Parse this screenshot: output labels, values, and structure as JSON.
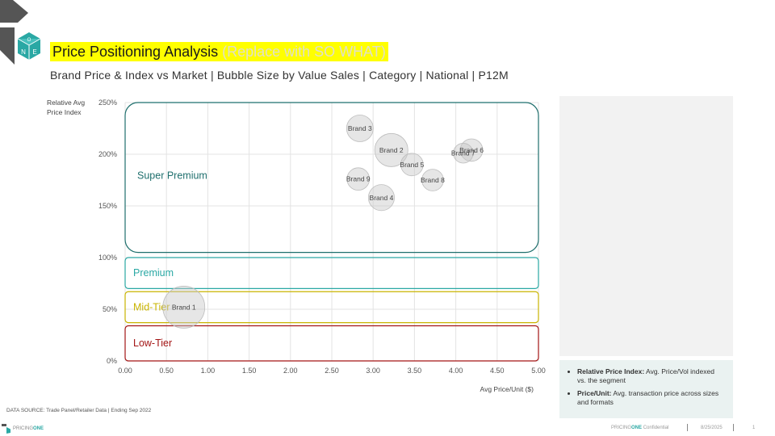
{
  "header": {
    "title": "Price Positioning Analysis",
    "title_note": "(Replace with SO WHAT)",
    "subtitle": "Brand Price & Index vs Market | Bubble Size by Value Sales | Category | National | P12M",
    "logo_letters": [
      "O",
      "N",
      "E"
    ]
  },
  "chart_data": {
    "type": "scatter",
    "title": "",
    "xlabel": "Avg Price/Unit ($)",
    "ylabel": "Relative Avg Price Index",
    "xlim": [
      0,
      5
    ],
    "ylim": [
      0,
      2.5
    ],
    "x_ticks": [
      "0.00",
      "0.50",
      "1.00",
      "1.50",
      "2.00",
      "2.50",
      "3.00",
      "3.50",
      "4.00",
      "4.50",
      "5.00"
    ],
    "y_ticks": [
      "0%",
      "50%",
      "100%",
      "150%",
      "200%",
      "250%"
    ],
    "grid": true,
    "points": [
      {
        "label": "Brand 1",
        "x": 0.71,
        "y": 0.52,
        "size": 1.0
      },
      {
        "label": "Brand 2",
        "x": 3.22,
        "y": 2.04,
        "size": 0.55
      },
      {
        "label": "Brand 3",
        "x": 2.84,
        "y": 2.25,
        "size": 0.3
      },
      {
        "label": "Brand 4",
        "x": 3.1,
        "y": 1.58,
        "size": 0.28
      },
      {
        "label": "Brand 5",
        "x": 3.47,
        "y": 1.9,
        "size": 0.18
      },
      {
        "label": "Brand 6",
        "x": 4.19,
        "y": 2.04,
        "size": 0.18
      },
      {
        "label": "Brand 7",
        "x": 4.09,
        "y": 2.01,
        "size": 0.12
      },
      {
        "label": "Brand 8",
        "x": 3.72,
        "y": 1.75,
        "size": 0.16
      },
      {
        "label": "Brand 9",
        "x": 2.82,
        "y": 1.76,
        "size": 0.18
      }
    ],
    "tiers": [
      {
        "label": "Super Premium",
        "y_from": 1.05,
        "y_to": 2.5,
        "color": "#1f6f6d"
      },
      {
        "label": "Premium",
        "y_from": 0.7,
        "y_to": 1.0,
        "color": "#2aa8a4"
      },
      {
        "label": "Mid-Tier",
        "y_from": 0.37,
        "y_to": 0.67,
        "color": "#c9b400"
      },
      {
        "label": "Low-Tier",
        "y_from": 0,
        "y_to": 0.34,
        "color": "#a31515"
      }
    ]
  },
  "notes": [
    {
      "term": "Relative Price Index:",
      "text": " Avg. Price/Vol indexed vs. the segment"
    },
    {
      "term": "Price/Unit:",
      "text": " Avg. transaction price across sizes and formats"
    }
  ],
  "footer": {
    "data_source": "DATA SOURCE: Trade Panel/Retailer Data | Ending Sep 2022",
    "logo_prefix": "PRICING",
    "logo_suffix": "ONE",
    "conf_prefix": "PRICING",
    "conf_brand": "ONE",
    "conf_text": " Confidential",
    "date": "8/25/2025",
    "page": "1"
  },
  "colors": {
    "title_highlight": "#ffff00",
    "accent": "#2aa8a4",
    "dark_accent": "#1f6f6d",
    "logo_dark": "#555555"
  }
}
